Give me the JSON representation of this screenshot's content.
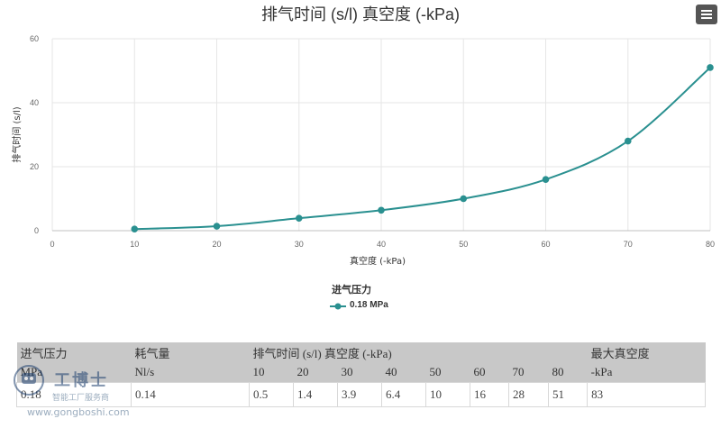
{
  "chart_data": {
    "type": "line",
    "title": "排气时间 (s/l) 真空度 (-kPa)",
    "xlabel": "真空度 (-kPa)",
    "ylabel": "排气时间 (s/l)",
    "xlim": [
      0,
      80
    ],
    "ylim": [
      0,
      60
    ],
    "xticks": [
      0,
      10,
      20,
      30,
      40,
      50,
      60,
      70,
      80
    ],
    "yticks": [
      0,
      20,
      40,
      60
    ],
    "grid": true,
    "legend_title": "进气压力",
    "legend_placement": "bottom-center",
    "series": [
      {
        "name": "0.18 MPa",
        "color": "#2a9090",
        "points": [
          {
            "x": 10,
            "y": 0.5
          },
          {
            "x": 20,
            "y": 1.4
          },
          {
            "x": 30,
            "y": 3.9
          },
          {
            "x": 40,
            "y": 6.4
          },
          {
            "x": 50,
            "y": 10
          },
          {
            "x": 60,
            "y": 16
          },
          {
            "x": 70,
            "y": 28
          },
          {
            "x": 80,
            "y": 51
          }
        ]
      }
    ]
  },
  "menu": {
    "icon": "hamburger-menu-icon"
  },
  "table": {
    "header1": {
      "pressure": "进气压力",
      "consumption": "耗气量",
      "exhaust": "排气时间 (s/l) 真空度 (-kPa)",
      "max_vacuum": "最大真空度"
    },
    "header2": [
      "MPa",
      "Nl/s",
      "10",
      "20",
      "30",
      "40",
      "50",
      "60",
      "70",
      "80",
      "-kPa"
    ],
    "rows": [
      [
        "0.18",
        "0.14",
        "0.5",
        "1.4",
        "3.9",
        "6.4",
        "10",
        "16",
        "28",
        "51",
        "83"
      ]
    ]
  },
  "watermark": {
    "name": "工博士",
    "subtitle": "智能工厂服务商",
    "url": "www.gongboshi.com"
  }
}
